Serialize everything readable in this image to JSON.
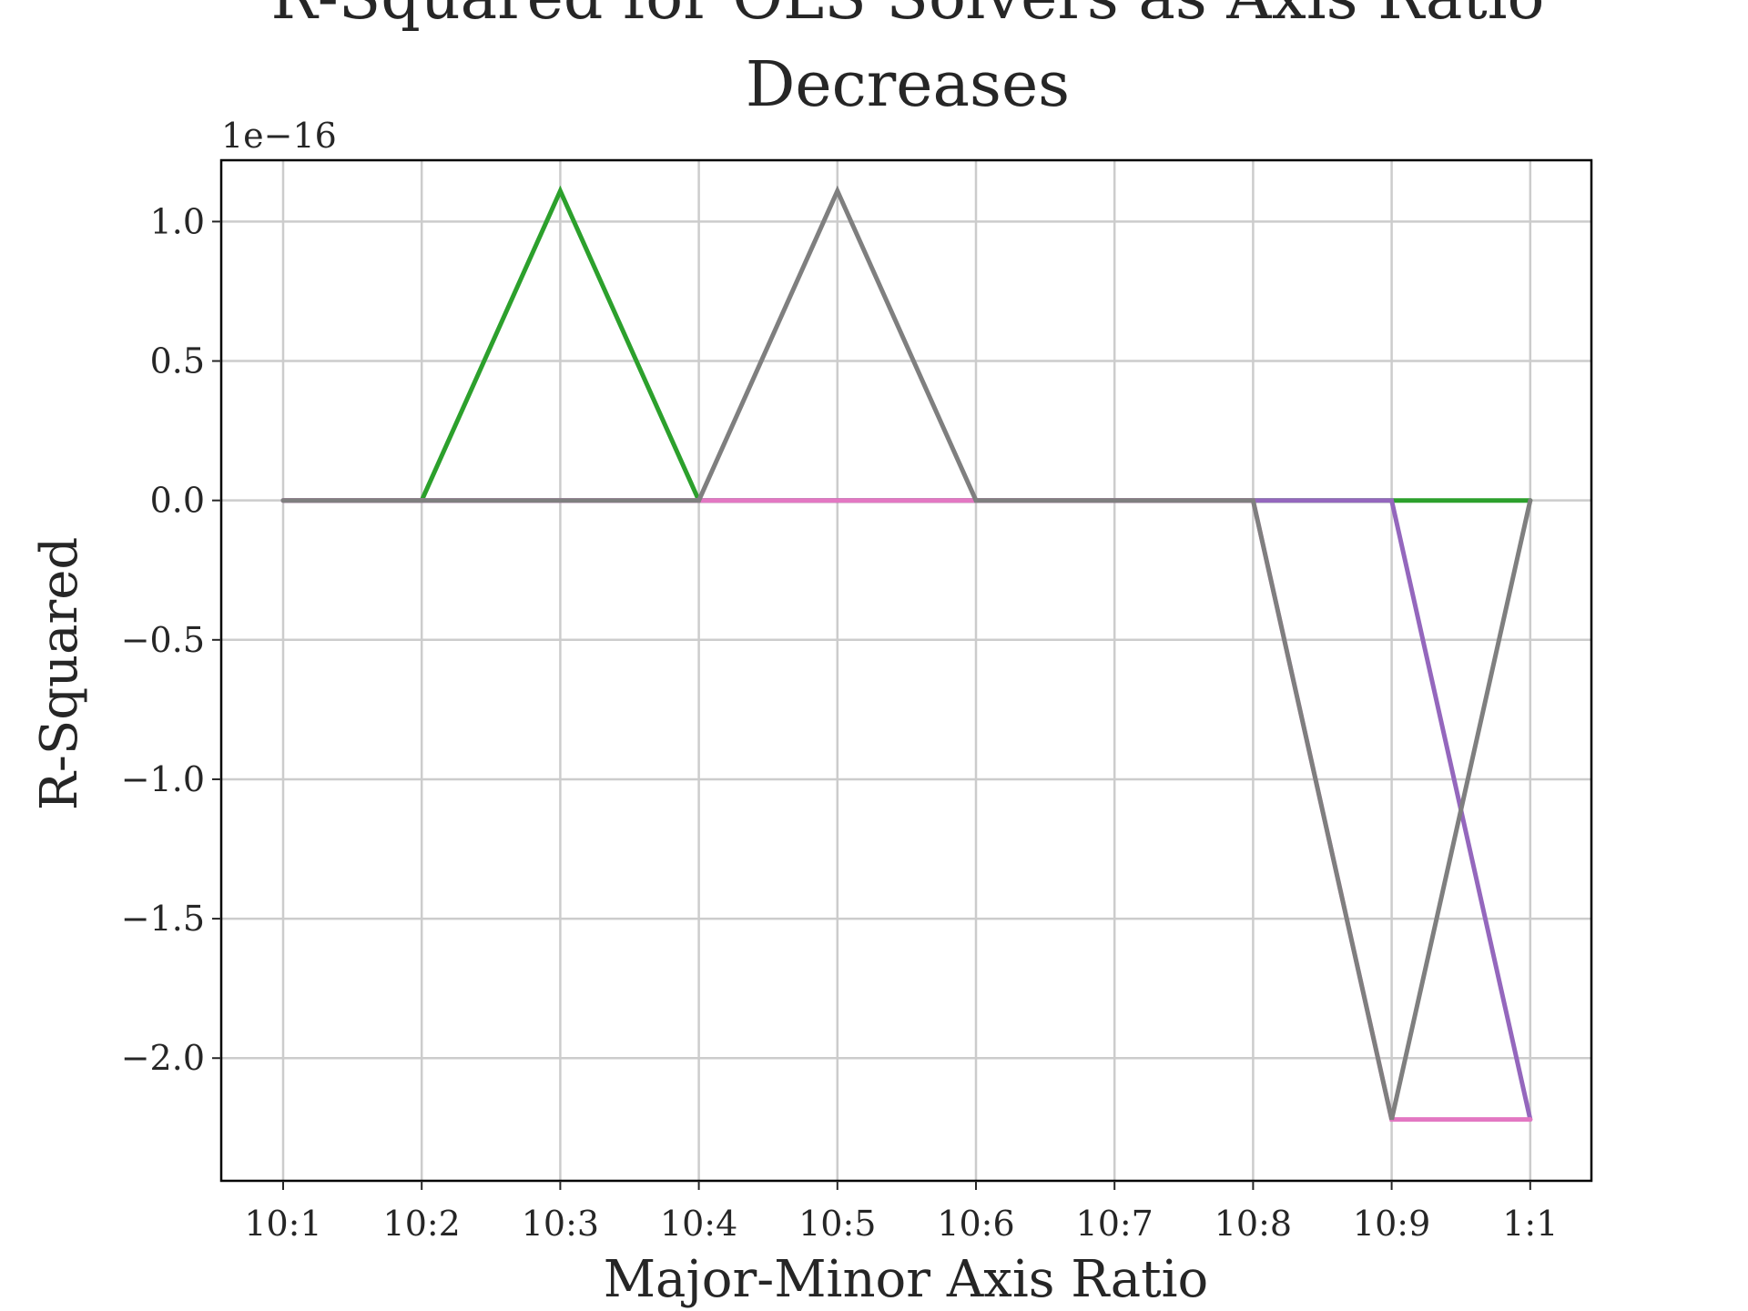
{
  "chart_data": {
    "type": "line",
    "title_line1": "R-Squared for OLS Solvers as Axis Ratio",
    "title_line2": "Decreases",
    "xlabel": "Major-Minor Axis Ratio",
    "ylabel": "R-Squared",
    "y_offset_label": "1e−16",
    "categories": [
      "10:1",
      "10:2",
      "10:3",
      "10:4",
      "10:5",
      "10:6",
      "10:7",
      "10:8",
      "10:9",
      "1:1"
    ],
    "yticks": [
      1.0,
      0.5,
      0.0,
      -0.5,
      -1.0,
      -1.5,
      -2.0
    ],
    "ytick_labels": [
      "1.0",
      "0.5",
      "0.0",
      "−0.5",
      "−1.0",
      "−1.5",
      "−2.0"
    ],
    "ylim": [
      -2.44,
      1.22
    ],
    "grid": true,
    "series": [
      {
        "color": "#2ca02c",
        "values": [
          0,
          0,
          1.11,
          0,
          0,
          0,
          0,
          0,
          0,
          0
        ]
      },
      {
        "color": "#9467bd",
        "values": [
          0,
          0,
          0,
          0,
          0,
          0,
          0,
          0,
          0,
          -2.22
        ]
      },
      {
        "color": "#e377c2",
        "values": [
          0,
          0,
          0,
          0,
          0,
          0,
          0,
          0,
          -2.22,
          -2.22
        ]
      },
      {
        "color": "#7f7f7f",
        "values": [
          0,
          0,
          0,
          0,
          1.11,
          0,
          0,
          0,
          -2.22,
          0
        ]
      }
    ]
  }
}
